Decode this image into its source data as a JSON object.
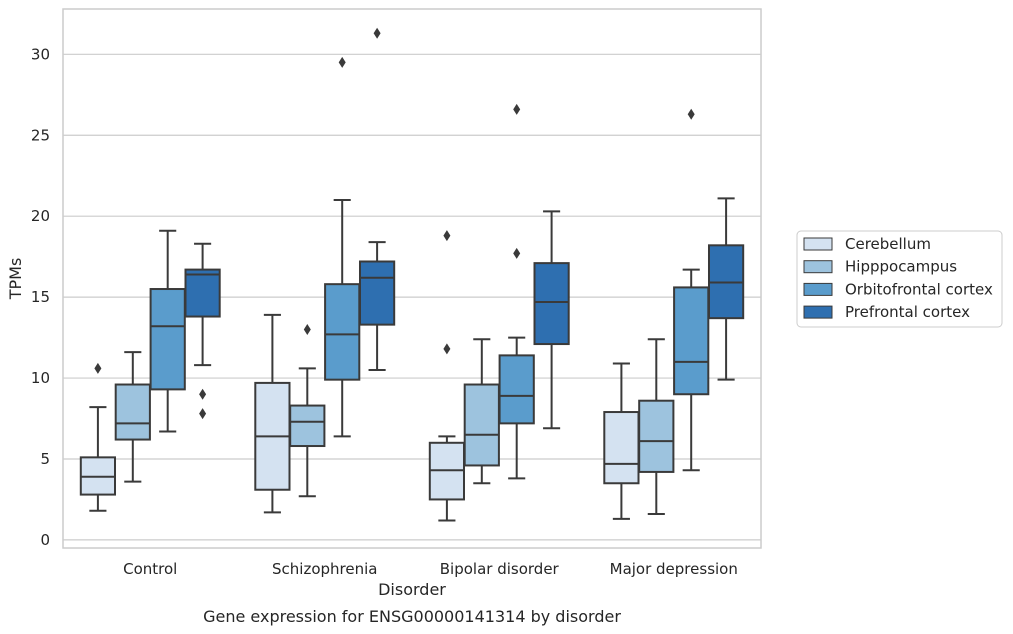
{
  "chart_data": {
    "type": "box",
    "title": "",
    "caption": "Gene expression for ENSG00000141314 by disorder",
    "xlabel": "Disorder",
    "ylabel": "TPMs",
    "ylim": [
      -0.5,
      32.8
    ],
    "yticks": [
      0,
      5,
      10,
      15,
      20,
      25,
      30
    ],
    "grid": true,
    "legend_position": "right",
    "categories": [
      "Control",
      "Schizophrenia",
      "Bipolar disorder",
      "Major depression"
    ],
    "series": [
      {
        "name": "Cerebellum",
        "color": "#d4e2f1",
        "boxes": [
          {
            "whislo": 1.8,
            "q1": 2.8,
            "med": 3.9,
            "q3": 5.1,
            "whishi": 8.2,
            "fliers": [
              10.6
            ]
          },
          {
            "whislo": 1.7,
            "q1": 3.1,
            "med": 6.4,
            "q3": 9.7,
            "whishi": 13.9,
            "fliers": []
          },
          {
            "whislo": 1.2,
            "q1": 2.5,
            "med": 4.3,
            "q3": 6.0,
            "whishi": 6.4,
            "fliers": [
              11.8,
              18.8
            ]
          },
          {
            "whislo": 1.3,
            "q1": 3.5,
            "med": 4.7,
            "q3": 7.9,
            "whishi": 10.9,
            "fliers": []
          }
        ]
      },
      {
        "name": "Hipppocampus",
        "color": "#9dc3de",
        "boxes": [
          {
            "whislo": 3.6,
            "q1": 6.2,
            "med": 7.2,
            "q3": 9.6,
            "whishi": 11.6,
            "fliers": []
          },
          {
            "whislo": 2.7,
            "q1": 5.8,
            "med": 7.3,
            "q3": 8.3,
            "whishi": 10.6,
            "fliers": [
              13.0
            ]
          },
          {
            "whislo": 3.5,
            "q1": 4.6,
            "med": 6.5,
            "q3": 9.6,
            "whishi": 12.4,
            "fliers": []
          },
          {
            "whislo": 1.6,
            "q1": 4.2,
            "med": 6.1,
            "q3": 8.6,
            "whishi": 12.4,
            "fliers": []
          }
        ]
      },
      {
        "name": "Orbitofrontal cortex",
        "color": "#5a9ccc",
        "boxes": [
          {
            "whislo": 6.7,
            "q1": 9.3,
            "med": 13.2,
            "q3": 15.5,
            "whishi": 19.1,
            "fliers": []
          },
          {
            "whislo": 6.4,
            "q1": 9.9,
            "med": 12.7,
            "q3": 15.8,
            "whishi": 21.0,
            "fliers": [
              29.5
            ]
          },
          {
            "whislo": 3.8,
            "q1": 7.2,
            "med": 8.9,
            "q3": 11.4,
            "whishi": 12.5,
            "fliers": [
              17.7,
              26.6
            ]
          },
          {
            "whislo": 4.3,
            "q1": 9.0,
            "med": 11.0,
            "q3": 15.6,
            "whishi": 16.7,
            "fliers": [
              26.3
            ]
          }
        ]
      },
      {
        "name": "Prefrontal cortex",
        "color": "#2e6fb0",
        "boxes": [
          {
            "whislo": 10.8,
            "q1": 13.8,
            "med": 16.4,
            "q3": 16.7,
            "whishi": 18.3,
            "fliers": [
              7.8,
              9.0
            ]
          },
          {
            "whislo": 10.5,
            "q1": 13.3,
            "med": 16.2,
            "q3": 17.2,
            "whishi": 18.4,
            "fliers": [
              31.3
            ]
          },
          {
            "whislo": 6.9,
            "q1": 12.1,
            "med": 14.7,
            "q3": 17.1,
            "whishi": 20.3,
            "fliers": []
          },
          {
            "whislo": 9.9,
            "q1": 13.7,
            "med": 15.9,
            "q3": 18.2,
            "whishi": 21.1,
            "fliers": []
          }
        ]
      }
    ]
  }
}
